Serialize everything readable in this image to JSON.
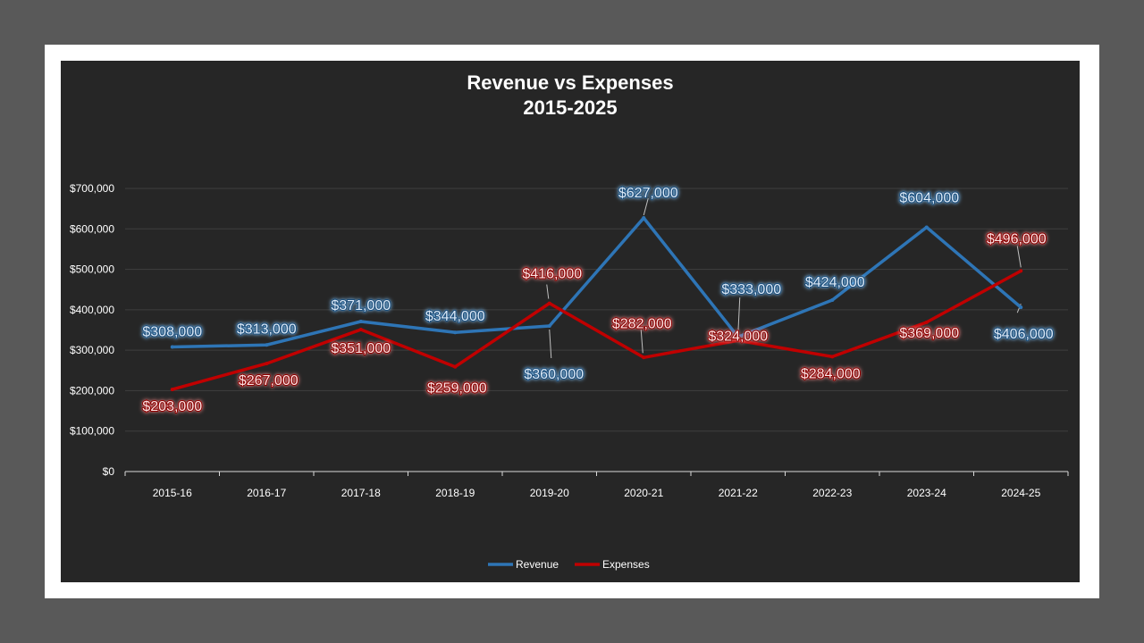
{
  "chart_data": {
    "type": "line",
    "title": "Revenue vs Expenses",
    "subtitle": "2015-2025",
    "categories": [
      "2015-16",
      "2016-17",
      "2017-18",
      "2018-19",
      "2019-20",
      "2020-21",
      "2021-22",
      "2022-23",
      "2023-24",
      "2024-25"
    ],
    "series": [
      {
        "name": "Revenue",
        "color": "#2e75b6",
        "values": [
          308000,
          313000,
          371000,
          344000,
          360000,
          627000,
          333000,
          424000,
          604000,
          406000
        ],
        "labels": [
          "$308,000",
          "$313,000",
          "$371,000",
          "$344,000",
          "$360,000",
          "$627,000",
          "$333,000",
          "$424,000",
          "$604,000",
          "$406,000"
        ]
      },
      {
        "name": "Expenses",
        "color": "#c00000",
        "values": [
          203000,
          267000,
          351000,
          259000,
          416000,
          282000,
          324000,
          284000,
          369000,
          496000
        ],
        "labels": [
          "$203,000",
          "$267,000",
          "$351,000",
          "$259,000",
          "$416,000",
          "$282,000",
          "$324,000",
          "$284,000",
          "$369,000",
          "$496,000"
        ]
      }
    ],
    "yticks": [
      "$0",
      "$100,000",
      "$200,000",
      "$300,000",
      "$400,000",
      "$500,000",
      "$600,000",
      "$700,000"
    ],
    "ylim": [
      0,
      700000
    ],
    "ytick_step": 100000,
    "xlabel": "",
    "ylabel": "",
    "grid": true,
    "legend": "bottom-center"
  }
}
